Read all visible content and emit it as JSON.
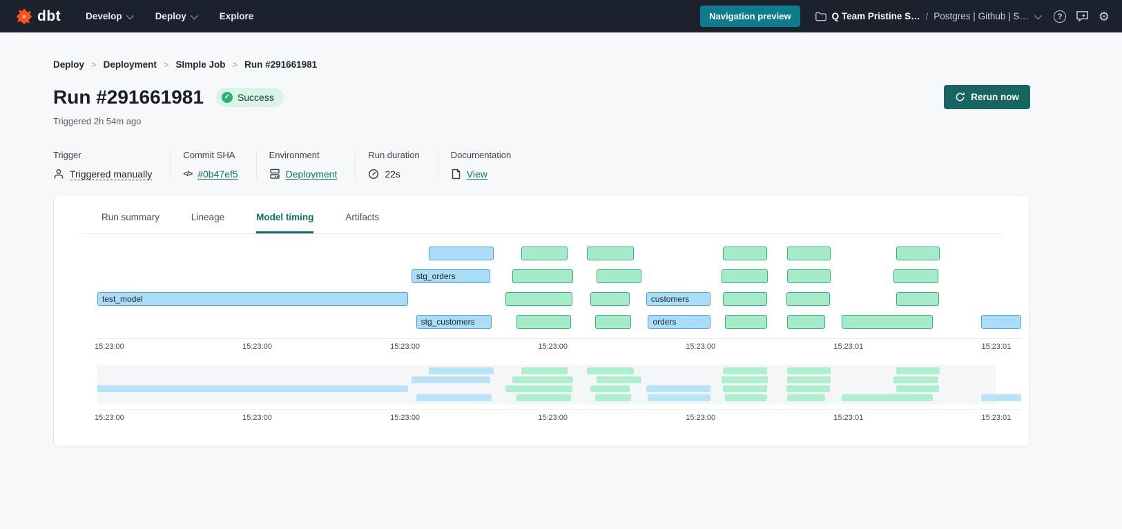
{
  "colors": {
    "nav_bg": "#1b222e",
    "accent_teal": "#0c7462",
    "preview_btn": "#0d7c8c",
    "rerun_btn": "#166562",
    "success_bg": "#d7f4e4",
    "success_dot": "#2cb374",
    "bar_blue_fill": "#abdcf8",
    "bar_blue_border": "#4ba1d8",
    "bar_green_fill": "#a5ebc7",
    "bar_green_border": "#2fb581"
  },
  "topnav": {
    "brand": "dbt",
    "menus": [
      {
        "label": "Develop",
        "chevron": true
      },
      {
        "label": "Deploy",
        "chevron": true
      },
      {
        "label": "Explore",
        "chevron": false
      }
    ],
    "preview_button": "Navigation preview",
    "account": "Q Team Pristine S…",
    "separator": "/",
    "project": "Postgres | Github | S…"
  },
  "breadcrumb": {
    "items": [
      "Deploy",
      "Deployment",
      "SImple Job",
      "Run #291661981"
    ],
    "separator": ">"
  },
  "header": {
    "title": "Run #291661981",
    "status": "Success",
    "triggered": "Triggered 2h 54m ago",
    "rerun_label": "Rerun now"
  },
  "meta": {
    "trigger": {
      "label": "Trigger",
      "value": "Triggered manually"
    },
    "commit": {
      "label": "Commit SHA",
      "value": "#0b47ef5"
    },
    "environment": {
      "label": "Environment",
      "value": "Deployment"
    },
    "duration": {
      "label": "Run duration",
      "value": "22s"
    },
    "documentation": {
      "label": "Documentation",
      "value": "View"
    }
  },
  "tabs": [
    {
      "label": "Run summary",
      "active": false
    },
    {
      "label": "Lineage",
      "active": false
    },
    {
      "label": "Model timing",
      "active": true
    },
    {
      "label": "Artifacts",
      "active": false
    }
  ],
  "chart_data": {
    "type": "gantt",
    "title": "Model timing",
    "time_start": "15:23:00",
    "time_end": "15:23:01",
    "models": [
      "test_model",
      "stg_orders",
      "stg_customers",
      "customers",
      "orders"
    ],
    "ticks": [
      {
        "label": "15:23:00",
        "x": 1.3
      },
      {
        "label": "15:23:00",
        "x": 17.3
      },
      {
        "label": "15:23:00",
        "x": 33.3
      },
      {
        "label": "15:23:00",
        "x": 49.3
      },
      {
        "label": "15:23:00",
        "x": 65.3
      },
      {
        "label": "15:23:01",
        "x": 81.3
      },
      {
        "label": "15:23:01",
        "x": 97.3
      }
    ],
    "mini_window_pct": 97.2,
    "rows": [
      {
        "bars": [
          {
            "color": "blue",
            "x": 35.9,
            "w": 7.0
          },
          {
            "color": "green",
            "x": 45.9,
            "w": 5.0
          },
          {
            "color": "green",
            "x": 53.0,
            "w": 5.1
          },
          {
            "color": "green",
            "x": 67.7,
            "w": 4.8
          },
          {
            "color": "green",
            "x": 74.7,
            "w": 4.7
          },
          {
            "color": "green",
            "x": 86.5,
            "w": 4.7
          }
        ]
      },
      {
        "bars": [
          {
            "color": "blue",
            "x": 34.0,
            "w": 8.5,
            "label": "stg_orders"
          },
          {
            "color": "green",
            "x": 44.9,
            "w": 6.6
          },
          {
            "color": "green",
            "x": 54.0,
            "w": 4.9
          },
          {
            "color": "green",
            "x": 67.6,
            "w": 5.0
          },
          {
            "color": "green",
            "x": 74.7,
            "w": 4.7
          },
          {
            "color": "green",
            "x": 86.2,
            "w": 4.8
          }
        ]
      },
      {
        "bars": [
          {
            "color": "blue",
            "x": 0.0,
            "w": 33.6,
            "label": "test_model"
          },
          {
            "color": "green",
            "x": 44.2,
            "w": 7.2
          },
          {
            "color": "green",
            "x": 53.4,
            "w": 4.2
          },
          {
            "color": "blue",
            "x": 59.4,
            "w": 7.0,
            "label": "customers"
          },
          {
            "color": "green",
            "x": 67.7,
            "w": 4.8
          },
          {
            "color": "green",
            "x": 74.6,
            "w": 4.7
          },
          {
            "color": "green",
            "x": 86.5,
            "w": 4.6
          }
        ]
      },
      {
        "bars": [
          {
            "color": "blue",
            "x": 34.5,
            "w": 8.2,
            "label": "stg_customers"
          },
          {
            "color": "green",
            "x": 45.4,
            "w": 5.9
          },
          {
            "color": "green",
            "x": 53.9,
            "w": 3.9
          },
          {
            "color": "blue",
            "x": 59.6,
            "w": 6.8,
            "label": "orders"
          },
          {
            "color": "green",
            "x": 67.9,
            "w": 4.6
          },
          {
            "color": "green",
            "x": 74.7,
            "w": 4.1
          },
          {
            "color": "green",
            "x": 80.6,
            "w": 9.8
          },
          {
            "color": "blue",
            "x": 95.7,
            "w": 4.3
          }
        ]
      }
    ]
  }
}
